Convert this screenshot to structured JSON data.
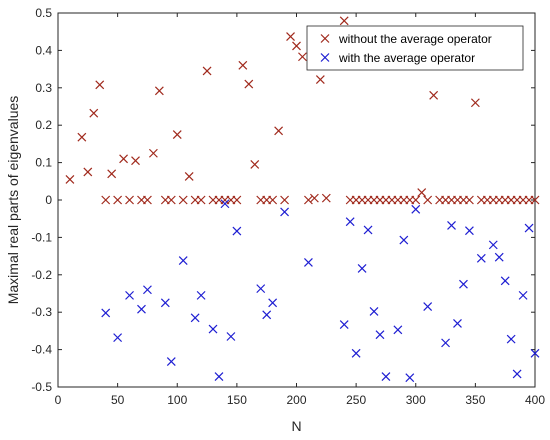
{
  "chart_data": {
    "type": "scatter",
    "xlabel": "N",
    "ylabel": "Maximal real parts of eigenvalues",
    "xlim": [
      0,
      400
    ],
    "ylim": [
      -0.5,
      0.5
    ],
    "xticks": [
      0,
      50,
      100,
      150,
      200,
      250,
      300,
      350,
      400
    ],
    "yticks": [
      0.5,
      0.4,
      0.3,
      0.2,
      0.1,
      0,
      -0.1,
      -0.2,
      -0.3,
      -0.4,
      -0.5
    ],
    "xtick_labels": [
      "0",
      "50",
      "100",
      "150",
      "200",
      "250",
      "300",
      "350",
      "400"
    ],
    "ytick_labels": [
      "0.5",
      "0.4",
      "0.3",
      "0.2",
      "0.1",
      "0",
      "-0.1",
      "-0.2",
      "-0.3",
      "-0.4",
      "-0.5"
    ],
    "grid": false,
    "legend_position": "top-right",
    "marker": "x",
    "series": [
      {
        "name": "without the average operator",
        "color": "#a0291c",
        "points": [
          [
            10,
            0.055
          ],
          [
            20,
            0.168
          ],
          [
            25,
            0.075
          ],
          [
            30,
            0.232
          ],
          [
            35,
            0.308
          ],
          [
            40,
            0.0
          ],
          [
            45,
            0.07
          ],
          [
            50,
            0.0
          ],
          [
            55,
            0.11
          ],
          [
            60,
            0.0
          ],
          [
            65,
            0.105
          ],
          [
            70,
            0.0
          ],
          [
            75,
            0.0
          ],
          [
            80,
            0.125
          ],
          [
            85,
            0.292
          ],
          [
            90,
            0.0
          ],
          [
            95,
            0.0
          ],
          [
            100,
            0.175
          ],
          [
            105,
            0.0
          ],
          [
            110,
            0.063
          ],
          [
            115,
            0.0
          ],
          [
            120,
            0.0
          ],
          [
            125,
            0.345
          ],
          [
            130,
            0.0
          ],
          [
            135,
            0.0
          ],
          [
            140,
            0.0
          ],
          [
            145,
            0.0
          ],
          [
            150,
            0.0
          ],
          [
            155,
            0.36
          ],
          [
            160,
            0.31
          ],
          [
            165,
            0.095
          ],
          [
            170,
            0.0
          ],
          [
            175,
            0.0
          ],
          [
            180,
            0.0
          ],
          [
            185,
            0.185
          ],
          [
            190,
            0.0
          ],
          [
            195,
            0.437
          ],
          [
            200,
            0.412
          ],
          [
            205,
            0.383
          ],
          [
            210,
            0.0
          ],
          [
            215,
            0.005
          ],
          [
            220,
            0.322
          ],
          [
            225,
            0.005
          ],
          [
            240,
            0.479
          ],
          [
            245,
            0.0
          ],
          [
            250,
            0.0
          ],
          [
            255,
            0.0
          ],
          [
            260,
            0.0
          ],
          [
            265,
            0.0
          ],
          [
            270,
            0.0
          ],
          [
            275,
            0.0
          ],
          [
            280,
            0.0
          ],
          [
            285,
            0.0
          ],
          [
            290,
            0.0
          ],
          [
            295,
            0.0
          ],
          [
            300,
            0.0
          ],
          [
            305,
            0.02
          ],
          [
            310,
            0.0
          ],
          [
            315,
            0.28
          ],
          [
            320,
            0.0
          ],
          [
            325,
            0.0
          ],
          [
            330,
            0.0
          ],
          [
            335,
            0.0
          ],
          [
            340,
            0.0
          ],
          [
            345,
            0.0
          ],
          [
            350,
            0.26
          ],
          [
            355,
            0.0
          ],
          [
            360,
            0.0
          ],
          [
            365,
            0.0
          ],
          [
            370,
            0.0
          ],
          [
            375,
            0.0
          ],
          [
            380,
            0.0
          ],
          [
            385,
            0.0
          ],
          [
            390,
            0.0
          ],
          [
            395,
            0.0
          ],
          [
            400,
            0.0
          ]
        ]
      },
      {
        "name": "with the average operator",
        "color": "#1e1ed2",
        "points": [
          [
            40,
            -0.302
          ],
          [
            50,
            -0.368
          ],
          [
            60,
            -0.255
          ],
          [
            70,
            -0.292
          ],
          [
            75,
            -0.24
          ],
          [
            90,
            -0.275
          ],
          [
            95,
            -0.432
          ],
          [
            105,
            -0.162
          ],
          [
            115,
            -0.315
          ],
          [
            120,
            -0.255
          ],
          [
            130,
            -0.345
          ],
          [
            135,
            -0.472
          ],
          [
            140,
            -0.01
          ],
          [
            145,
            -0.365
          ],
          [
            150,
            -0.083
          ],
          [
            170,
            -0.237
          ],
          [
            175,
            -0.307
          ],
          [
            180,
            -0.275
          ],
          [
            190,
            -0.032
          ],
          [
            210,
            -0.167
          ],
          [
            240,
            -0.333
          ],
          [
            245,
            -0.058
          ],
          [
            250,
            -0.41
          ],
          [
            255,
            -0.183
          ],
          [
            260,
            -0.08
          ],
          [
            265,
            -0.298
          ],
          [
            270,
            -0.36
          ],
          [
            275,
            -0.472
          ],
          [
            285,
            -0.347
          ],
          [
            290,
            -0.107
          ],
          [
            295,
            -0.475
          ],
          [
            300,
            -0.025
          ],
          [
            310,
            -0.285
          ],
          [
            325,
            -0.382
          ],
          [
            330,
            -0.068
          ],
          [
            335,
            -0.33
          ],
          [
            340,
            -0.225
          ],
          [
            345,
            -0.082
          ],
          [
            355,
            -0.156
          ],
          [
            365,
            -0.12
          ],
          [
            370,
            -0.153
          ],
          [
            375,
            -0.216
          ],
          [
            380,
            -0.372
          ],
          [
            385,
            -0.465
          ],
          [
            390,
            -0.255
          ],
          [
            395,
            -0.075
          ],
          [
            400,
            -0.41
          ]
        ]
      }
    ]
  }
}
